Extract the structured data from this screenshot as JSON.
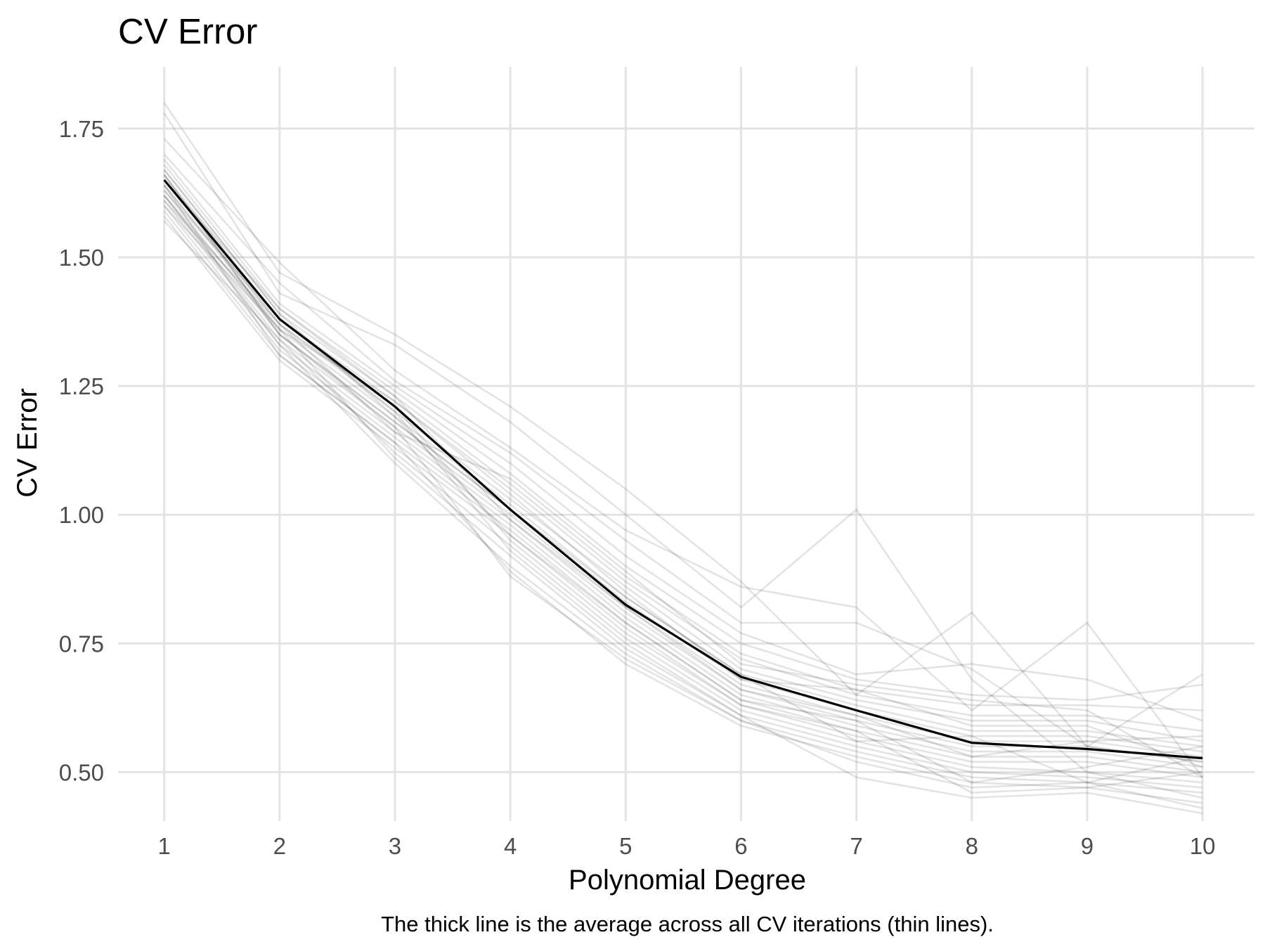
{
  "chart_data": {
    "type": "line",
    "title": "CV Error",
    "xlabel": "Polynomial Degree",
    "ylabel": "CV Error",
    "caption": "The thick line is the average across all CV iterations (thin lines).",
    "x": [
      1,
      2,
      3,
      4,
      5,
      6,
      7,
      8,
      9,
      10
    ],
    "xticks": [
      "1",
      "2",
      "3",
      "4",
      "5",
      "6",
      "7",
      "8",
      "9",
      "10"
    ],
    "yticks": [
      "0.50",
      "0.75",
      "1.00",
      "1.25",
      "1.50",
      "1.75"
    ],
    "ytick_values": [
      0.5,
      0.75,
      1.0,
      1.25,
      1.5,
      1.75
    ],
    "xlim": [
      0.6,
      10.45
    ],
    "ylim": [
      0.405,
      1.87
    ],
    "grid": true,
    "legend": "none",
    "mean_color": "#000000",
    "iteration_color": "#000000",
    "grid_color": "#e3e3e3",
    "mean": [
      1.65,
      1.38,
      1.21,
      1.01,
      0.825,
      0.685,
      0.62,
      0.557,
      0.545,
      0.527
    ],
    "iterations": [
      [
        1.8,
        1.47,
        1.35,
        1.21,
        1.05,
        0.87,
        0.65,
        0.81,
        0.55,
        0.52
      ],
      [
        1.78,
        1.43,
        1.33,
        1.18,
        1.0,
        0.82,
        1.01,
        0.68,
        0.5,
        0.45
      ],
      [
        1.73,
        1.49,
        1.28,
        1.13,
        0.97,
        0.86,
        0.82,
        0.62,
        0.79,
        0.49
      ],
      [
        1.7,
        1.45,
        1.26,
        1.12,
        0.95,
        0.79,
        0.79,
        0.7,
        0.55,
        0.69
      ],
      [
        1.69,
        1.41,
        1.25,
        1.1,
        0.92,
        0.77,
        0.69,
        0.71,
        0.68,
        0.6
      ],
      [
        1.68,
        1.4,
        1.24,
        1.08,
        0.9,
        0.75,
        0.68,
        0.65,
        0.64,
        0.67
      ],
      [
        1.67,
        1.39,
        1.23,
        1.06,
        0.88,
        0.73,
        0.66,
        0.63,
        0.63,
        0.62
      ],
      [
        1.66,
        1.38,
        1.22,
        1.05,
        0.87,
        0.72,
        0.65,
        0.61,
        0.61,
        0.58
      ],
      [
        1.65,
        1.37,
        1.2,
        1.03,
        0.86,
        0.7,
        0.64,
        0.6,
        0.6,
        0.56
      ],
      [
        1.64,
        1.36,
        1.19,
        1.02,
        0.84,
        0.69,
        0.63,
        0.58,
        0.58,
        0.55
      ],
      [
        1.63,
        1.35,
        1.18,
        1.01,
        0.83,
        0.68,
        0.62,
        0.57,
        0.57,
        0.54
      ],
      [
        1.62,
        1.34,
        1.17,
        1.0,
        0.82,
        0.67,
        0.61,
        0.56,
        0.56,
        0.53
      ],
      [
        1.61,
        1.33,
        1.16,
        0.99,
        0.81,
        0.66,
        0.6,
        0.55,
        0.55,
        0.52
      ],
      [
        1.6,
        1.32,
        1.15,
        0.98,
        0.8,
        0.65,
        0.59,
        0.54,
        0.54,
        0.51
      ],
      [
        1.59,
        1.31,
        1.14,
        0.97,
        0.79,
        0.64,
        0.58,
        0.53,
        0.53,
        0.5
      ],
      [
        1.58,
        1.3,
        1.13,
        0.96,
        0.78,
        0.63,
        0.57,
        0.52,
        0.52,
        0.49
      ],
      [
        1.57,
        1.34,
        1.12,
        0.94,
        0.76,
        0.62,
        0.56,
        0.51,
        0.5,
        0.48
      ],
      [
        1.6,
        1.36,
        1.11,
        0.92,
        0.74,
        0.61,
        0.55,
        0.5,
        0.49,
        0.47
      ],
      [
        1.62,
        1.33,
        1.1,
        0.9,
        0.73,
        0.6,
        0.54,
        0.49,
        0.48,
        0.46
      ],
      [
        1.64,
        1.31,
        1.14,
        0.89,
        0.71,
        0.59,
        0.53,
        0.48,
        0.47,
        0.44
      ],
      [
        1.66,
        1.35,
        1.17,
        0.88,
        0.72,
        0.6,
        0.52,
        0.47,
        0.48,
        0.43
      ],
      [
        1.63,
        1.38,
        1.2,
        0.93,
        0.75,
        0.61,
        0.49,
        0.45,
        0.46,
        0.42
      ],
      [
        1.61,
        1.37,
        1.21,
        0.95,
        0.77,
        0.63,
        0.58,
        0.46,
        0.47,
        0.5
      ],
      [
        1.67,
        1.39,
        1.19,
        0.96,
        0.79,
        0.64,
        0.6,
        0.48,
        0.51,
        0.55
      ],
      [
        1.65,
        1.4,
        1.23,
        0.99,
        0.82,
        0.66,
        0.61,
        0.53,
        0.56,
        0.57
      ],
      [
        1.62,
        1.36,
        1.22,
        1.04,
        0.85,
        0.68,
        0.66,
        0.59,
        0.59,
        0.51
      ],
      [
        1.64,
        1.37,
        1.16,
        1.07,
        0.89,
        0.71,
        0.67,
        0.64,
        0.62,
        0.49
      ],
      [
        1.66,
        1.35,
        1.18,
        1.01,
        0.84,
        0.69,
        0.56,
        0.57,
        0.48,
        0.53
      ]
    ]
  }
}
